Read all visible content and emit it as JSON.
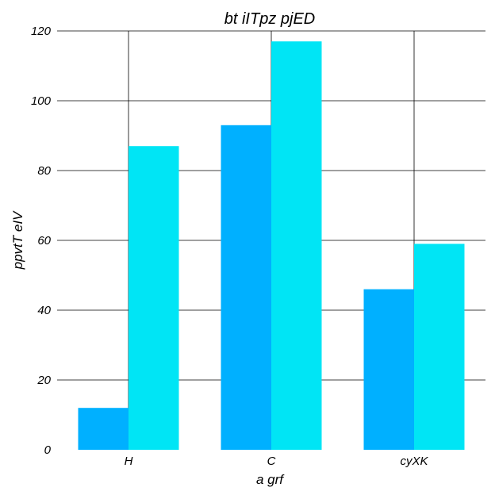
{
  "chart_data": {
    "type": "bar",
    "title": "bt iITpz pjED",
    "xlabel": "a grf",
    "ylabel": "ppvtT eIV",
    "categories": [
      "H",
      "C",
      "cyXK"
    ],
    "series": [
      {
        "values": [
          12,
          93,
          46
        ],
        "color": "#00b0ff"
      },
      {
        "values": [
          87,
          117,
          59
        ],
        "color": "#00e5f5"
      }
    ],
    "ylim": [
      0,
      120
    ],
    "yticks": [
      0,
      20,
      40,
      60,
      80,
      100,
      120
    ],
    "grid": true
  }
}
